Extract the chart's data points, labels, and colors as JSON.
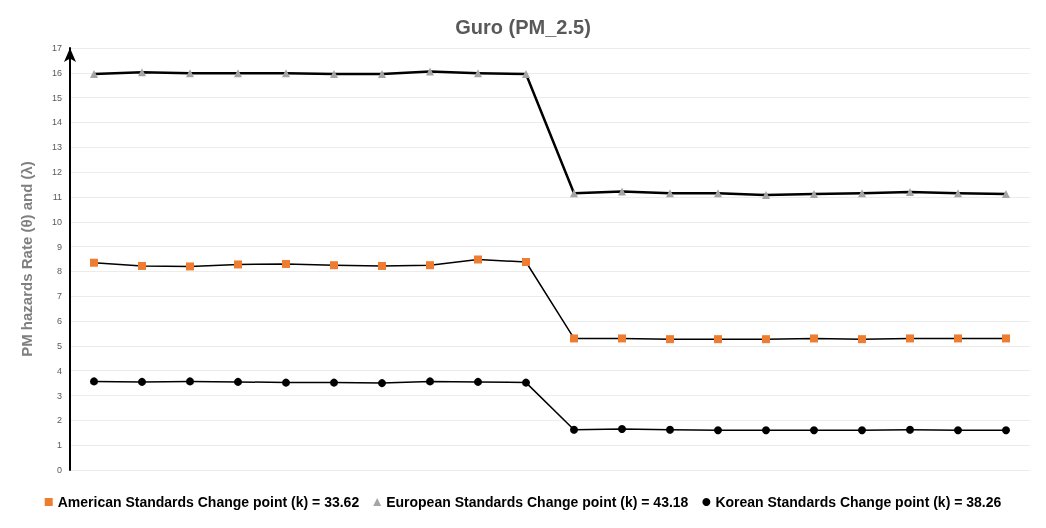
{
  "chart_data": {
    "type": "line",
    "title": "Guro (PM_2.5)",
    "ylabel": "PM hazards Rate (θ) and (λ)",
    "categories": [
      null,
      null,
      null,
      null,
      null,
      null,
      null,
      null,
      null,
      null,
      null,
      null,
      null,
      null,
      null,
      null,
      null,
      null,
      null,
      null
    ],
    "series": [
      {
        "name": "American Standards Change point (k) = 33.62",
        "color": "#ed7d31",
        "marker": "square",
        "values": [
          8.35,
          8.22,
          8.2,
          8.28,
          8.3,
          8.25,
          8.22,
          8.25,
          8.48,
          8.38,
          5.3,
          5.3,
          5.27,
          5.27,
          5.27,
          5.3,
          5.27,
          5.3,
          5.3,
          5.3
        ]
      },
      {
        "name": "European Standards Change point (k) = 43.18",
        "color": "#a5a5a5",
        "marker": "triangle",
        "values": [
          15.95,
          16.02,
          15.98,
          15.98,
          15.98,
          15.95,
          15.95,
          16.05,
          15.98,
          15.95,
          11.15,
          11.22,
          11.15,
          11.15,
          11.08,
          11.12,
          11.15,
          11.2,
          11.15,
          11.12
        ]
      },
      {
        "name": "Korean Standards Change point (k) = 38.26",
        "color": "#000000",
        "marker": "circle",
        "values": [
          3.57,
          3.55,
          3.57,
          3.55,
          3.52,
          3.52,
          3.5,
          3.57,
          3.55,
          3.52,
          1.62,
          1.65,
          1.62,
          1.6,
          1.6,
          1.6,
          1.6,
          1.62,
          1.6,
          1.6
        ]
      }
    ],
    "ylim": [
      0,
      17
    ],
    "yticks": [
      0,
      1,
      2,
      3,
      4,
      5,
      6,
      7,
      8,
      9,
      10,
      11,
      12,
      13,
      14,
      15,
      16,
      17
    ],
    "grid": "y",
    "legend": "bottom",
    "tick_labels": "y"
  }
}
